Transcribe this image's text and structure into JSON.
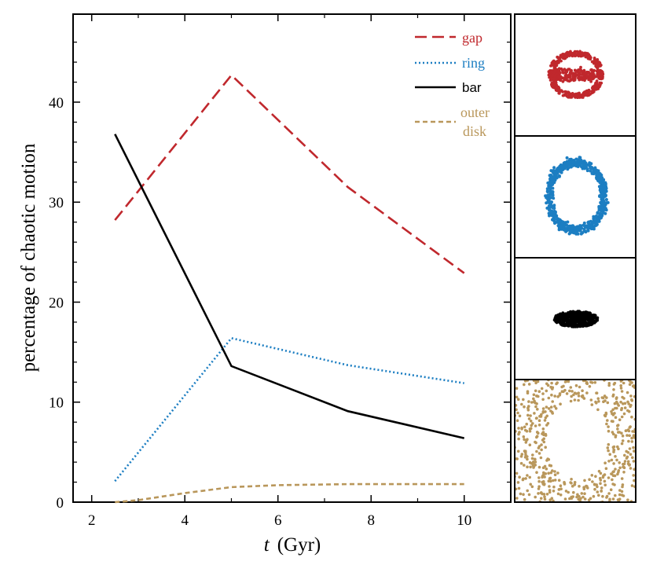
{
  "chart_data": {
    "type": "line",
    "x": [
      2.5,
      5,
      7.5,
      10
    ],
    "series": [
      {
        "key": "gap",
        "name": "gap",
        "color": "#c0282d",
        "dash": "dashed",
        "values": [
          28.2,
          42.7,
          31.5,
          22.9
        ]
      },
      {
        "key": "ring",
        "name": "ring",
        "color": "#1c7ec2",
        "dash": "dotted",
        "values": [
          2.1,
          16.4,
          13.7,
          11.9
        ]
      },
      {
        "key": "bar",
        "name": "bar",
        "color": "#000000",
        "dash": "solid",
        "values": [
          36.8,
          13.6,
          9.1,
          6.4
        ]
      },
      {
        "key": "outer",
        "name": "outer disk",
        "legend_lines": [
          "outer",
          "disk"
        ],
        "color": "#b9975b",
        "dash": "short-dashed",
        "x": [
          2.5,
          3,
          4,
          5,
          6,
          7.5,
          10
        ],
        "values": [
          0,
          0.2,
          0.9,
          1.5,
          1.7,
          1.8,
          1.8
        ]
      }
    ],
    "xlabel_italic": "t",
    "xlabel_unit": "(Gyr)",
    "ylabel": "percentage of chaotic motion",
    "xlim": [
      1.6,
      11.0
    ],
    "ylim": [
      0,
      48.8
    ],
    "xticks": [
      "2",
      "4",
      "6",
      "8",
      "10"
    ],
    "xtick_values": [
      2,
      4,
      6,
      8,
      10
    ],
    "yticks": [
      "0",
      "10",
      "20",
      "30",
      "40"
    ],
    "ytick_values": [
      0,
      10,
      20,
      30,
      40
    ],
    "legend_position": "top-right"
  },
  "panels": [
    {
      "name": "gap",
      "color": "#c0282d",
      "shape": "gap-lens"
    },
    {
      "name": "ring",
      "color": "#1c7ec2",
      "shape": "ring"
    },
    {
      "name": "bar",
      "color": "#000000",
      "shape": "bar-ellipse"
    },
    {
      "name": "outer disk",
      "color": "#b9975b",
      "shape": "outer-disk"
    }
  ]
}
